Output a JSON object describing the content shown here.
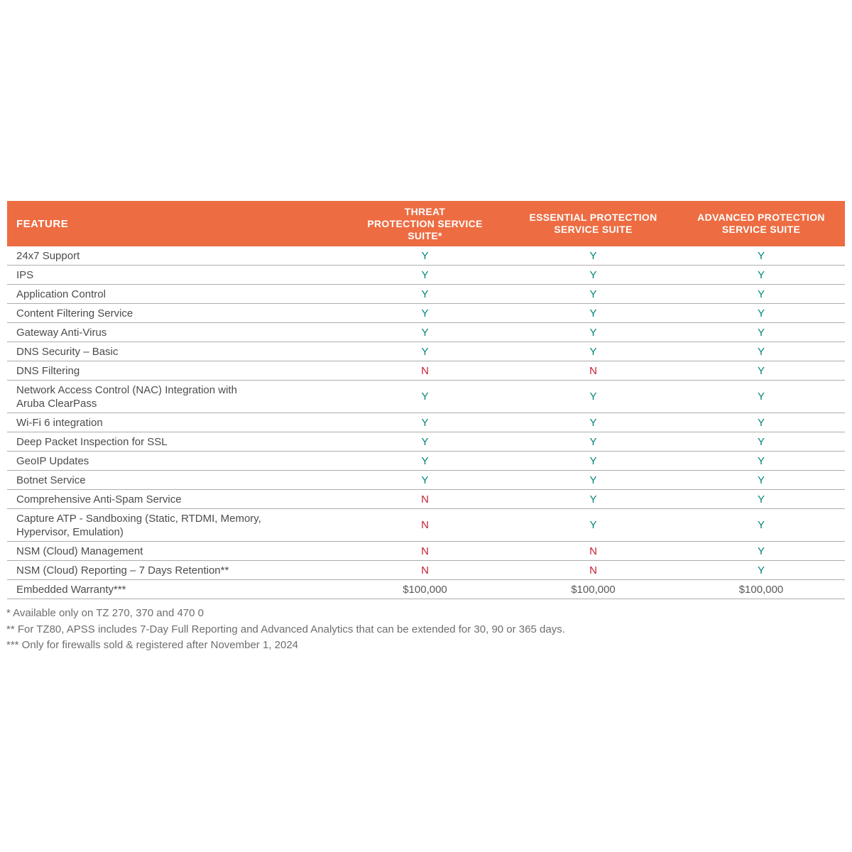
{
  "colors": {
    "header_bg": "#ED6C42",
    "header_text": "#FFFFFF",
    "yes": "#008578",
    "no": "#C52134",
    "feature_text": "#4C4C4C",
    "money_text": "#58595B",
    "row_border": "#ADADAD",
    "footnote_text": "#6E6E6E"
  },
  "table": {
    "headers": [
      "FEATURE",
      "THREAT\nPROTECTION SERVICE\nSUITE*",
      "ESSENTIAL PROTECTION\nSERVICE SUITE",
      "ADVANCED PROTECTION\nSERVICE SUITE"
    ],
    "rows": [
      {
        "feature": "24x7 Support",
        "values": [
          "Y",
          "Y",
          "Y"
        ]
      },
      {
        "feature": "IPS",
        "values": [
          "Y",
          "Y",
          "Y"
        ]
      },
      {
        "feature": "Application Control",
        "values": [
          "Y",
          "Y",
          "Y"
        ]
      },
      {
        "feature": "Content Filtering Service",
        "values": [
          "Y",
          "Y",
          "Y"
        ]
      },
      {
        "feature": "Gateway Anti-Virus",
        "values": [
          "Y",
          "Y",
          "Y"
        ]
      },
      {
        "feature": "DNS Security – Basic",
        "values": [
          "Y",
          "Y",
          "Y"
        ]
      },
      {
        "feature": "DNS Filtering",
        "values": [
          "N",
          "N",
          "Y"
        ]
      },
      {
        "feature": "Network Access Control (NAC) Integration with\nAruba ClearPass",
        "values": [
          "Y",
          "Y",
          "Y"
        ]
      },
      {
        "feature": "Wi-Fi 6 integration",
        "values": [
          "Y",
          "Y",
          "Y"
        ]
      },
      {
        "feature": "Deep Packet Inspection for SSL",
        "values": [
          "Y",
          "Y",
          "Y"
        ]
      },
      {
        "feature": "GeoIP Updates",
        "values": [
          "Y",
          "Y",
          "Y"
        ]
      },
      {
        "feature": "Botnet Service",
        "values": [
          "Y",
          "Y",
          "Y"
        ]
      },
      {
        "feature": "Comprehensive Anti-Spam Service",
        "values": [
          "N",
          "Y",
          "Y"
        ]
      },
      {
        "feature": "Capture ATP -  Sandboxing (Static, RTDMI, Memory,\nHypervisor, Emulation)",
        "values": [
          "N",
          "Y",
          "Y"
        ]
      },
      {
        "feature": "NSM (Cloud) Management",
        "values": [
          "N",
          "N",
          "Y"
        ]
      },
      {
        "feature": "NSM (Cloud) Reporting – 7 Days Retention**",
        "values": [
          "N",
          "N",
          "Y"
        ]
      },
      {
        "feature": "Embedded Warranty***",
        "values": [
          "$100,000",
          "$100,000",
          "$100,000"
        ]
      }
    ]
  },
  "footnotes": [
    "* Available only on TZ 270, 370 and 470 0",
    "** For TZ80, APSS includes 7-Day Full Reporting and Advanced Analytics that can be extended for 30, 90 or 365 days.",
    "*** Only for firewalls sold & registered after November 1, 2024"
  ]
}
